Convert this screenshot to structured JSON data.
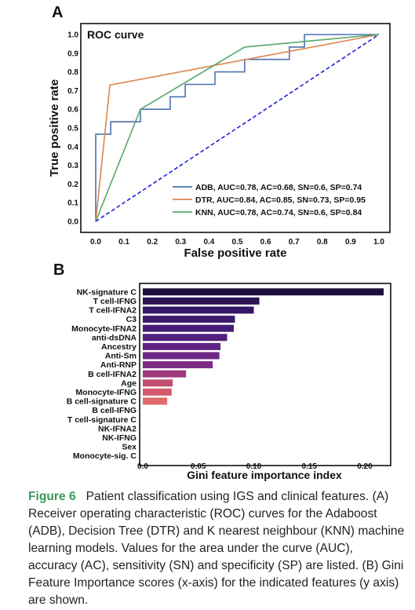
{
  "panel_a_label": "A",
  "panel_b_label": "B",
  "caption": {
    "label": "Figure 6",
    "text": "Patient classification using IGS and clinical features. (A) Receiver operating characteristic (ROC) curves for the Adaboost (ADB), Decision Tree (DTR) and K nearest neighbour (KNN) machine learning models. Values for the area under the curve (AUC), accuracy (AC), sensitivity (SN) and specificity (SP) are listed. (B) Gini Feature Importance scores (x-axis) for the indicated features (y axis) are shown."
  },
  "chart_data": [
    {
      "type": "line",
      "title": "ROC curve",
      "xlabel": "False positive rate",
      "ylabel": "True positive rate",
      "xlim": [
        0,
        1
      ],
      "ylim": [
        0,
        1
      ],
      "xticks": [
        "0.0",
        "0.1",
        "0.2",
        "0.3",
        "0.4",
        "0.5",
        "0.6",
        "0.7",
        "0.8",
        "0.9",
        "1.0"
      ],
      "yticks": [
        "0.0",
        "0.1",
        "0.2",
        "0.3",
        "0.4",
        "0.5",
        "0.6",
        "0.7",
        "0.8",
        "0.9",
        "1.0"
      ],
      "legend_position": "lower-right",
      "series": [
        {
          "name": "ADB, AUC=0.78, AC=0.68, SN=0.6, SP=0.74",
          "color": "#4c72b0",
          "x": [
            0,
            0,
            0.053,
            0.053,
            0.158,
            0.158,
            0.263,
            0.263,
            0.316,
            0.316,
            0.421,
            0.421,
            0.526,
            0.526,
            0.684,
            0.684,
            0.737,
            0.737,
            1.0
          ],
          "y": [
            0,
            0.467,
            0.467,
            0.533,
            0.533,
            0.6,
            0.6,
            0.667,
            0.667,
            0.733,
            0.733,
            0.8,
            0.8,
            0.867,
            0.867,
            0.933,
            0.933,
            1.0,
            1.0
          ]
        },
        {
          "name": "DTR, AUC=0.84, AC=0.85, SN=0.73, SP=0.95",
          "color": "#dd8452",
          "x": [
            0,
            0.05,
            1.0
          ],
          "y": [
            0,
            0.73,
            1.0
          ]
        },
        {
          "name": "KNN, AUC=0.78, AC=0.74, SN=0.6, SP=0.84",
          "color": "#55a868",
          "x": [
            0,
            0.158,
            0.526,
            1.0
          ],
          "y": [
            0,
            0.6,
            0.933,
            1.0
          ]
        },
        {
          "name": "",
          "color": "#1f1fd6",
          "dashed": true,
          "x": [
            0,
            1
          ],
          "y": [
            0,
            1
          ]
        }
      ]
    },
    {
      "type": "bar",
      "orientation": "horizontal",
      "xlabel": "Gini feature importance index",
      "xlim": [
        0,
        0.225
      ],
      "xticks": [
        "0.0",
        "0.05",
        "0.10",
        "0.15",
        "0.20"
      ],
      "categories": [
        "NK-signature C",
        "T cell-IFNG",
        "T cell-IFNA2",
        "C3",
        "Monocyte-IFNA2",
        "anti-dsDNA",
        "Ancestry",
        "Anti-Sm",
        "Anti-RNP",
        "B cell-IFNA2",
        "Age",
        "Monocyte-IFNG",
        "B cell-signature C",
        "B cell-IFNG",
        "T cell-signature C",
        "NK-IFNA2",
        "NK-IFNG",
        "Sex",
        "Monocyte-sig. C"
      ],
      "values": [
        0.217,
        0.105,
        0.1,
        0.083,
        0.082,
        0.076,
        0.07,
        0.069,
        0.063,
        0.039,
        0.027,
        0.026,
        0.022,
        0,
        0,
        0,
        0,
        0,
        0
      ],
      "colors": [
        "#1b1040",
        "#2a1455",
        "#341865",
        "#3d1a6e",
        "#461c76",
        "#521f7d",
        "#5f2382",
        "#6d2785",
        "#7b2b86",
        "#a0387c",
        "#c44e72",
        "#d5596d",
        "#e06a6a",
        "#e87a6a",
        "#ee8a6a",
        "#f29a6c",
        "#f5aa70",
        "#f7b976",
        "#f9c87c"
      ]
    }
  ]
}
